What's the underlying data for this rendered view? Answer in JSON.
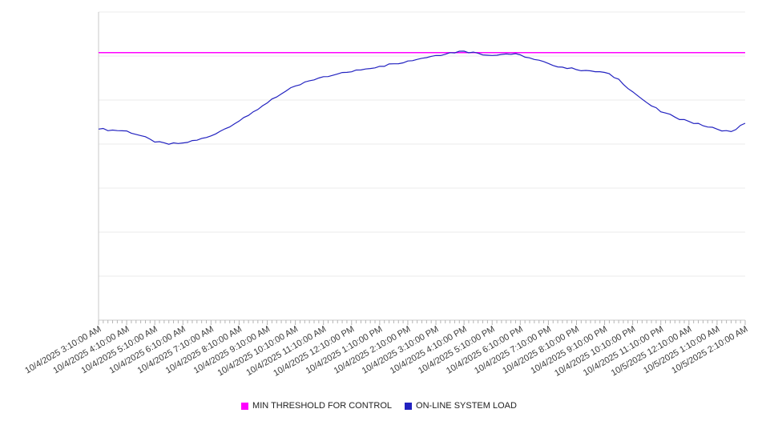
{
  "chart_data": {
    "type": "line",
    "title": "",
    "xlabel": "",
    "ylabel": "",
    "x_tick_labels": [
      "10/4/2025 3:10:00 AM",
      "10/4/2025 4:10:00 AM",
      "10/4/2025 5:10:00 AM",
      "10/4/2025 6:10:00 AM",
      "10/4/2025 7:10:00 AM",
      "10/4/2025 8:10:00 AM",
      "10/4/2025 9:10:00 AM",
      "10/4/2025 10:10:00 AM",
      "10/4/2025 11:10:00 AM",
      "10/4/2025 12:10:00 PM",
      "10/4/2025 1:10:00 PM",
      "10/4/2025 2:10:00 PM",
      "10/4/2025 3:10:00 PM",
      "10/4/2025 4:10:00 PM",
      "10/4/2025 5:10:00 PM",
      "10/4/2025 6:10:00 PM",
      "10/4/2025 7:10:00 PM",
      "10/4/2025 8:10:00 PM",
      "10/4/2025 9:10:00 PM",
      "10/4/2025 10:10:00 PM",
      "10/4/2025 11:10:00 PM",
      "10/5/2025 12:10:00 AM",
      "10/5/2025 1:10:00 AM",
      "10/5/2025 2:10:00 AM"
    ],
    "x_minutes_per_tick": 60,
    "x_minutes_per_point": 30,
    "minor_tick_minutes": 10,
    "ylim": [
      0,
      100
    ],
    "grid_divisions": 7,
    "grid_on": true,
    "legend_position": "bottom-center",
    "noise_amplitude": 0.35,
    "series": [
      {
        "name": "MIN THRESHOLD FOR CONTROL",
        "style": "horizontal-threshold",
        "color": "#ff00ff",
        "value": 86.8
      },
      {
        "name": "ON-LINE SYSTEM LOAD",
        "style": "line",
        "color": "#2222c0",
        "values": [
          62.0,
          61.7,
          61.4,
          59.9,
          57.8,
          57.1,
          57.5,
          58.4,
          59.8,
          62.1,
          64.6,
          67.6,
          70.5,
          73.4,
          76.0,
          77.7,
          79.0,
          79.9,
          80.6,
          81.5,
          82.4,
          83.2,
          84.1,
          85.0,
          85.9,
          86.8,
          87.3,
          86.6,
          85.9,
          86.4,
          86.1,
          84.6,
          83.3,
          82.1,
          81.3,
          80.9,
          80.4,
          78.2,
          74.1,
          70.6,
          67.6,
          65.9,
          64.5,
          63.1,
          62.0,
          61.2,
          63.9
        ]
      }
    ],
    "colors": {
      "background": "#ffffff",
      "grid": "#ebebeb",
      "axis": "#c9c9c9",
      "tick": "#b5b5b5",
      "label": "#3a3a3a",
      "legend_text": "#222222"
    }
  }
}
